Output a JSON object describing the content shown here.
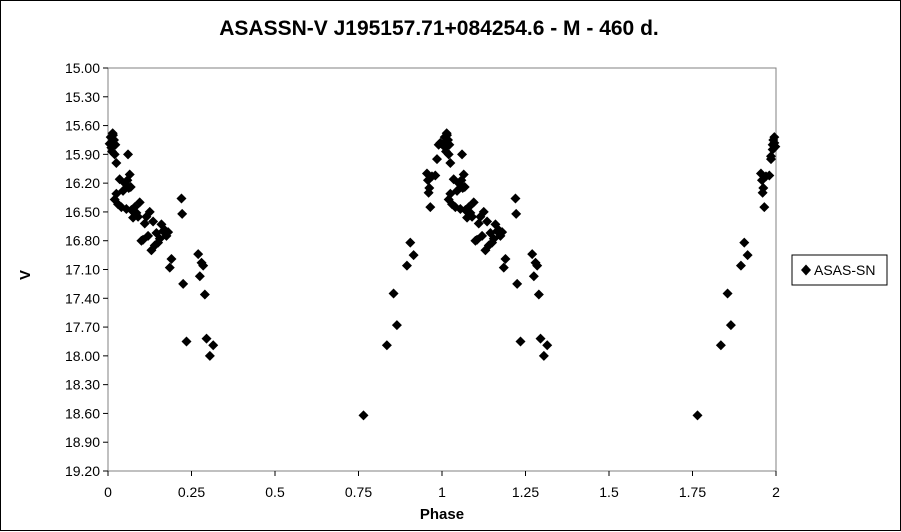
{
  "chart_data": {
    "type": "scatter",
    "title": "ASASSN-V J195157.71+084254.6  - M - 460 d.",
    "xlabel": "Phase",
    "ylabel": "V",
    "xlim": [
      0,
      2
    ],
    "ylim": [
      19.2,
      15.0
    ],
    "y_inverted": true,
    "x_ticks": [
      "0",
      "0.25",
      "0.5",
      "0.75",
      "1",
      "1.25",
      "1.5",
      "1.75",
      "2"
    ],
    "x_tick_values": [
      0,
      0.25,
      0.5,
      0.75,
      1,
      1.25,
      1.5,
      1.75,
      2
    ],
    "y_ticks": [
      "15.00",
      "15.30",
      "15.60",
      "15.90",
      "16.20",
      "16.50",
      "16.80",
      "17.10",
      "17.40",
      "17.70",
      "18.00",
      "18.30",
      "18.60",
      "18.90",
      "19.20"
    ],
    "y_tick_values": [
      15.0,
      15.3,
      15.6,
      15.9,
      16.2,
      16.5,
      16.8,
      17.1,
      17.4,
      17.7,
      18.0,
      18.3,
      18.6,
      18.9,
      19.2
    ],
    "grid": false,
    "marker": "diamond",
    "marker_color": "#000000",
    "legend_position": "right",
    "series": [
      {
        "name": "ASAS-SN",
        "points": [
          [
            0.005,
            15.79
          ],
          [
            0.008,
            15.72
          ],
          [
            0.01,
            15.83
          ],
          [
            0.012,
            15.87
          ],
          [
            0.015,
            15.7
          ],
          [
            0.018,
            15.75
          ],
          [
            0.02,
            15.9
          ],
          [
            0.022,
            15.8
          ],
          [
            0.025,
            15.99
          ],
          [
            0.014,
            15.68
          ],
          [
            0.02,
            16.37
          ],
          [
            0.025,
            16.31
          ],
          [
            0.03,
            16.42
          ],
          [
            0.035,
            16.16
          ],
          [
            0.04,
            16.45
          ],
          [
            0.045,
            16.28
          ],
          [
            0.05,
            16.2
          ],
          [
            0.055,
            16.47
          ],
          [
            0.058,
            16.17
          ],
          [
            0.06,
            15.9
          ],
          [
            0.062,
            16.25
          ],
          [
            0.065,
            16.11
          ],
          [
            0.068,
            16.24
          ],
          [
            0.07,
            16.48
          ],
          [
            0.075,
            16.56
          ],
          [
            0.08,
            16.45
          ],
          [
            0.085,
            16.51
          ],
          [
            0.09,
            16.55
          ],
          [
            0.095,
            16.4
          ],
          [
            0.1,
            16.8
          ],
          [
            0.105,
            16.79
          ],
          [
            0.11,
            16.62
          ],
          [
            0.115,
            16.55
          ],
          [
            0.12,
            16.75
          ],
          [
            0.125,
            16.5
          ],
          [
            0.13,
            16.9
          ],
          [
            0.135,
            16.6
          ],
          [
            0.14,
            16.85
          ],
          [
            0.145,
            16.72
          ],
          [
            0.15,
            16.82
          ],
          [
            0.155,
            16.78
          ],
          [
            0.16,
            16.63
          ],
          [
            0.165,
            16.7
          ],
          [
            0.17,
            16.69
          ],
          [
            0.175,
            16.75
          ],
          [
            0.18,
            16.71
          ],
          [
            0.185,
            17.08
          ],
          [
            0.19,
            16.99
          ],
          [
            0.22,
            16.36
          ],
          [
            0.222,
            16.52
          ],
          [
            0.225,
            17.25
          ],
          [
            0.235,
            17.85
          ],
          [
            0.27,
            16.94
          ],
          [
            0.275,
            17.17
          ],
          [
            0.28,
            17.03
          ],
          [
            0.285,
            17.06
          ],
          [
            0.29,
            17.36
          ],
          [
            0.295,
            17.82
          ],
          [
            0.305,
            18.0
          ],
          [
            0.315,
            17.89
          ],
          [
            0.765,
            18.62
          ],
          [
            0.835,
            17.89
          ],
          [
            0.855,
            17.35
          ],
          [
            0.865,
            17.68
          ],
          [
            0.895,
            17.06
          ],
          [
            0.905,
            16.82
          ],
          [
            0.915,
            16.95
          ],
          [
            0.955,
            16.1
          ],
          [
            0.958,
            16.17
          ],
          [
            0.96,
            16.3
          ],
          [
            0.962,
            16.25
          ],
          [
            0.965,
            16.45
          ],
          [
            0.97,
            16.13
          ],
          [
            0.98,
            16.12
          ],
          [
            0.985,
            15.95
          ],
          [
            0.99,
            15.8
          ],
          [
            0.995,
            15.78
          ],
          [
            1.005,
            15.79
          ],
          [
            1.008,
            15.72
          ],
          [
            1.01,
            15.83
          ],
          [
            1.012,
            15.87
          ],
          [
            1.015,
            15.7
          ],
          [
            1.018,
            15.75
          ],
          [
            1.02,
            15.9
          ],
          [
            1.022,
            15.8
          ],
          [
            1.025,
            15.99
          ],
          [
            1.014,
            15.68
          ],
          [
            1.02,
            16.37
          ],
          [
            1.025,
            16.31
          ],
          [
            1.03,
            16.42
          ],
          [
            1.035,
            16.16
          ],
          [
            1.04,
            16.45
          ],
          [
            1.045,
            16.28
          ],
          [
            1.05,
            16.2
          ],
          [
            1.055,
            16.47
          ],
          [
            1.058,
            16.17
          ],
          [
            1.06,
            15.9
          ],
          [
            1.062,
            16.25
          ],
          [
            1.065,
            16.11
          ],
          [
            1.068,
            16.24
          ],
          [
            1.07,
            16.48
          ],
          [
            1.075,
            16.56
          ],
          [
            1.08,
            16.45
          ],
          [
            1.085,
            16.51
          ],
          [
            1.09,
            16.55
          ],
          [
            1.095,
            16.4
          ],
          [
            1.1,
            16.8
          ],
          [
            1.105,
            16.79
          ],
          [
            1.11,
            16.62
          ],
          [
            1.115,
            16.55
          ],
          [
            1.12,
            16.75
          ],
          [
            1.125,
            16.5
          ],
          [
            1.13,
            16.9
          ],
          [
            1.135,
            16.6
          ],
          [
            1.14,
            16.85
          ],
          [
            1.145,
            16.72
          ],
          [
            1.15,
            16.82
          ],
          [
            1.155,
            16.78
          ],
          [
            1.16,
            16.63
          ],
          [
            1.165,
            16.7
          ],
          [
            1.17,
            16.69
          ],
          [
            1.175,
            16.75
          ],
          [
            1.18,
            16.71
          ],
          [
            1.185,
            17.08
          ],
          [
            1.19,
            16.99
          ],
          [
            1.22,
            16.36
          ],
          [
            1.222,
            16.52
          ],
          [
            1.225,
            17.25
          ],
          [
            1.235,
            17.85
          ],
          [
            1.27,
            16.94
          ],
          [
            1.275,
            17.17
          ],
          [
            1.28,
            17.03
          ],
          [
            1.285,
            17.06
          ],
          [
            1.29,
            17.36
          ],
          [
            1.295,
            17.82
          ],
          [
            1.305,
            18.0
          ],
          [
            1.315,
            17.89
          ],
          [
            1.765,
            18.62
          ],
          [
            1.835,
            17.89
          ],
          [
            1.855,
            17.35
          ],
          [
            1.865,
            17.68
          ],
          [
            1.895,
            17.06
          ],
          [
            1.905,
            16.82
          ],
          [
            1.915,
            16.95
          ],
          [
            1.955,
            16.1
          ],
          [
            1.958,
            16.17
          ],
          [
            1.96,
            16.3
          ],
          [
            1.962,
            16.25
          ],
          [
            1.965,
            16.45
          ],
          [
            1.97,
            16.13
          ],
          [
            1.98,
            16.12
          ],
          [
            1.985,
            15.95
          ],
          [
            1.99,
            15.8
          ],
          [
            1.995,
            15.78
          ],
          [
            1.985,
            15.92
          ],
          [
            1.99,
            15.85
          ],
          [
            1.995,
            15.72
          ],
          [
            1.998,
            15.82
          ],
          [
            1.992,
            15.75
          ]
        ]
      }
    ]
  }
}
